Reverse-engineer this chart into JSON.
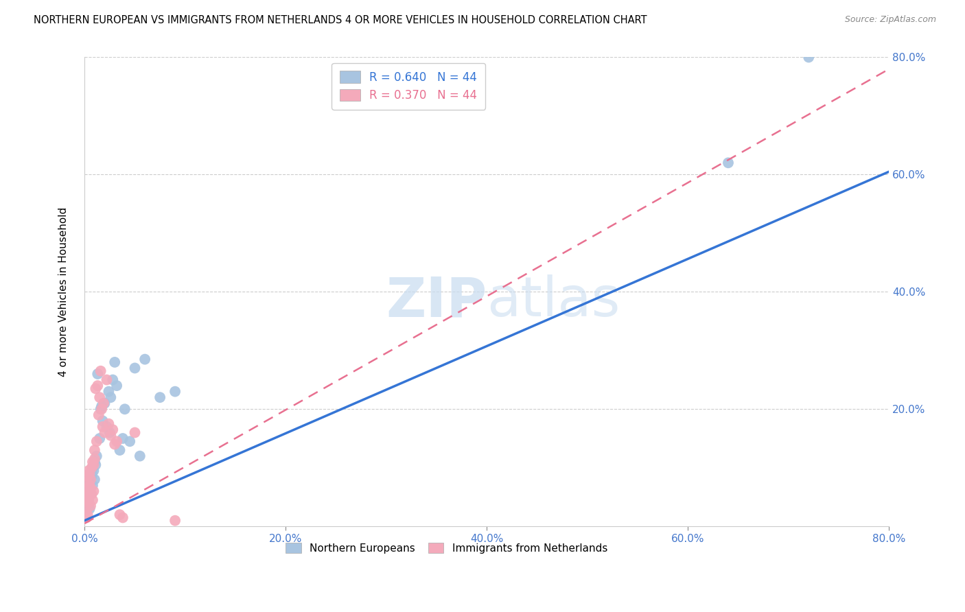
{
  "title": "NORTHERN EUROPEAN VS IMMIGRANTS FROM NETHERLANDS 4 OR MORE VEHICLES IN HOUSEHOLD CORRELATION CHART",
  "source": "Source: ZipAtlas.com",
  "ylabel": "4 or more Vehicles in Household",
  "xlim": [
    0.0,
    0.8
  ],
  "ylim": [
    0.0,
    0.8
  ],
  "xticks": [
    0.0,
    0.2,
    0.4,
    0.6,
    0.8
  ],
  "yticks": [
    0.0,
    0.2,
    0.4,
    0.6,
    0.8
  ],
  "xticklabels": [
    "0.0%",
    "20.0%",
    "40.0%",
    "60.0%",
    "80.0%"
  ],
  "right_yticklabels": [
    "",
    "20.0%",
    "40.0%",
    "60.0%",
    "80.0%"
  ],
  "blue_R": 0.64,
  "blue_N": 44,
  "pink_R": 0.37,
  "pink_N": 44,
  "blue_color": "#A8C4E0",
  "pink_color": "#F4AABB",
  "blue_line_color": "#3575D5",
  "pink_line_color": "#E87090",
  "tick_label_color": "#4477CC",
  "watermark_color": "#C8DCF0",
  "legend_label_blue": "Northern Europeans",
  "legend_label_pink": "Immigrants from Netherlands",
  "blue_line_x0": 0.0,
  "blue_line_y0": 0.01,
  "blue_line_x1": 0.8,
  "blue_line_y1": 0.605,
  "pink_line_x0": 0.0,
  "pink_line_y0": 0.005,
  "pink_line_x1": 0.8,
  "pink_line_y1": 0.78,
  "blue_scatter_x": [
    0.001,
    0.002,
    0.002,
    0.003,
    0.003,
    0.004,
    0.004,
    0.005,
    0.005,
    0.006,
    0.006,
    0.007,
    0.007,
    0.008,
    0.008,
    0.009,
    0.01,
    0.01,
    0.011,
    0.012,
    0.013,
    0.015,
    0.016,
    0.017,
    0.018,
    0.02,
    0.022,
    0.024,
    0.025,
    0.026,
    0.028,
    0.03,
    0.032,
    0.035,
    0.038,
    0.04,
    0.045,
    0.05,
    0.055,
    0.06,
    0.075,
    0.09,
    0.64,
    0.72
  ],
  "blue_scatter_y": [
    0.05,
    0.04,
    0.06,
    0.055,
    0.07,
    0.045,
    0.065,
    0.03,
    0.08,
    0.075,
    0.055,
    0.09,
    0.085,
    0.1,
    0.07,
    0.095,
    0.08,
    0.11,
    0.105,
    0.12,
    0.26,
    0.15,
    0.2,
    0.205,
    0.18,
    0.21,
    0.17,
    0.23,
    0.16,
    0.22,
    0.25,
    0.28,
    0.24,
    0.13,
    0.15,
    0.2,
    0.145,
    0.27,
    0.12,
    0.285,
    0.22,
    0.23,
    0.62,
    0.8
  ],
  "pink_scatter_x": [
    0.001,
    0.001,
    0.002,
    0.002,
    0.002,
    0.003,
    0.003,
    0.003,
    0.004,
    0.004,
    0.004,
    0.005,
    0.005,
    0.006,
    0.006,
    0.006,
    0.007,
    0.007,
    0.008,
    0.008,
    0.009,
    0.009,
    0.01,
    0.01,
    0.011,
    0.012,
    0.013,
    0.014,
    0.015,
    0.016,
    0.017,
    0.018,
    0.019,
    0.02,
    0.022,
    0.024,
    0.026,
    0.028,
    0.03,
    0.032,
    0.035,
    0.038,
    0.05,
    0.09
  ],
  "pink_scatter_y": [
    0.025,
    0.045,
    0.015,
    0.055,
    0.075,
    0.02,
    0.06,
    0.085,
    0.05,
    0.04,
    0.095,
    0.07,
    0.09,
    0.035,
    0.065,
    0.08,
    0.055,
    0.1,
    0.045,
    0.11,
    0.06,
    0.105,
    0.115,
    0.13,
    0.235,
    0.145,
    0.24,
    0.19,
    0.22,
    0.265,
    0.2,
    0.17,
    0.21,
    0.16,
    0.25,
    0.175,
    0.155,
    0.165,
    0.14,
    0.145,
    0.02,
    0.015,
    0.16,
    0.01
  ]
}
